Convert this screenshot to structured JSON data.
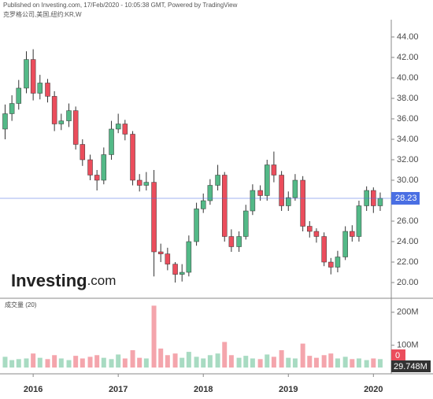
{
  "chart_data": {
    "type": "candlestick",
    "header": "Published on Investing.com, 17/Feb/2020 - 10:05:38 GMT, Powered by TradingView",
    "subtitle": "克罗格公司,美国,纽约:KR,W",
    "logo_main": "Investing",
    "logo_suffix": ".com",
    "up_color": "#53b987",
    "down_color": "#eb4d5c",
    "price_line_color": "#4a6fe3",
    "x": [
      2015.67,
      2015.75,
      2015.83,
      2015.92,
      2016.0,
      2016.08,
      2016.17,
      2016.25,
      2016.33,
      2016.42,
      2016.5,
      2016.58,
      2016.67,
      2016.75,
      2016.83,
      2016.92,
      2017.0,
      2017.08,
      2017.17,
      2017.25,
      2017.33,
      2017.42,
      2017.5,
      2017.58,
      2017.67,
      2017.75,
      2017.83,
      2017.92,
      2018.0,
      2018.08,
      2018.17,
      2018.25,
      2018.33,
      2018.42,
      2018.5,
      2018.58,
      2018.67,
      2018.75,
      2018.83,
      2018.92,
      2019.0,
      2019.08,
      2019.17,
      2019.25,
      2019.33,
      2019.42,
      2019.5,
      2019.58,
      2019.67,
      2019.75,
      2019.83,
      2019.92,
      2020.0,
      2020.08
    ],
    "open": [
      35.0,
      36.5,
      37.5,
      39.0,
      41.8,
      38.5,
      39.5,
      38.2,
      35.5,
      35.8,
      36.8,
      33.5,
      32.0,
      30.5,
      30.0,
      32.5,
      35.0,
      35.5,
      34.5,
      30.0,
      29.5,
      29.8,
      23.0,
      22.8,
      21.8,
      20.8,
      21.0,
      24.0,
      27.2,
      28.0,
      29.5,
      30.5,
      24.5,
      23.5,
      24.5,
      27.0,
      29.0,
      28.5,
      31.5,
      30.5,
      27.5,
      28.3,
      30.0,
      25.5,
      25.0,
      24.5,
      22.0,
      21.5,
      22.5,
      25.0,
      24.5,
      27.5,
      29.0,
      27.5
    ],
    "high": [
      37.4,
      38.3,
      39.8,
      42.6,
      42.8,
      40.3,
      39.9,
      38.7,
      36.5,
      37.5,
      37.2,
      34.0,
      32.5,
      31.0,
      33.2,
      35.8,
      36.5,
      35.9,
      34.8,
      30.6,
      30.8,
      31.0,
      23.8,
      23.4,
      22.0,
      21.8,
      24.6,
      27.8,
      28.7,
      30.1,
      31.5,
      30.8,
      25.2,
      25.0,
      27.6,
      29.6,
      29.5,
      32.0,
      32.8,
      30.9,
      28.9,
      30.6,
      30.4,
      26.0,
      25.3,
      24.9,
      22.4,
      23.1,
      25.5,
      25.6,
      28.0,
      29.4,
      29.3,
      28.8
    ],
    "low": [
      34.0,
      35.8,
      36.9,
      38.5,
      37.8,
      37.9,
      37.6,
      34.8,
      34.9,
      35.2,
      33.0,
      31.4,
      30.0,
      29.0,
      29.6,
      32.0,
      34.6,
      33.9,
      29.5,
      28.9,
      29.0,
      20.6,
      22.0,
      21.2,
      20.0,
      20.1,
      20.6,
      23.6,
      26.8,
      27.6,
      29.0,
      24.0,
      23.0,
      23.0,
      24.2,
      26.6,
      28.0,
      28.0,
      29.8,
      27.0,
      27.0,
      28.0,
      25.0,
      24.4,
      23.9,
      21.6,
      20.8,
      21.0,
      22.2,
      24.0,
      24.0,
      27.0,
      26.8,
      27.0
    ],
    "close": [
      36.5,
      37.5,
      39.0,
      41.8,
      38.5,
      39.5,
      38.2,
      35.5,
      35.8,
      36.8,
      33.5,
      32.0,
      30.5,
      30.0,
      32.5,
      35.0,
      35.5,
      34.5,
      30.0,
      29.5,
      29.8,
      23.0,
      22.8,
      21.8,
      20.8,
      21.0,
      24.0,
      27.2,
      28.0,
      29.5,
      30.5,
      24.5,
      23.5,
      24.5,
      27.0,
      29.0,
      28.5,
      31.5,
      30.5,
      27.5,
      28.3,
      30.0,
      25.5,
      25.0,
      24.5,
      22.0,
      21.5,
      22.5,
      25.0,
      24.5,
      27.5,
      29.0,
      27.5,
      28.23
    ],
    "xlim": [
      2015.61,
      2020.21
    ],
    "xticks": [
      2016,
      2017,
      2018,
      2019,
      2020
    ],
    "ylim": [
      18.54,
      45.69
    ],
    "yticks": [
      {
        "value": 20,
        "label": "20.00"
      },
      {
        "value": 22,
        "label": "22.00"
      },
      {
        "value": 24,
        "label": "24.00"
      },
      {
        "value": 26,
        "label": "26.00"
      },
      {
        "value": 28,
        "label": "28.00"
      },
      {
        "value": 30,
        "label": "30.00"
      },
      {
        "value": 32,
        "label": "32.00"
      },
      {
        "value": 34,
        "label": "34.00"
      },
      {
        "value": 36,
        "label": "36.00"
      },
      {
        "value": 38,
        "label": "38.00"
      },
      {
        "value": 40,
        "label": "40.00"
      },
      {
        "value": 42,
        "label": "42.00"
      },
      {
        "value": 44,
        "label": "44.00"
      }
    ],
    "volume": {
      "label": "成交量 (20)",
      "values": [
        65000000,
        55000000,
        58000000,
        60000000,
        75000000,
        62000000,
        58000000,
        70000000,
        60000000,
        55000000,
        68000000,
        60000000,
        65000000,
        70000000,
        62000000,
        58000000,
        72000000,
        60000000,
        85000000,
        62000000,
        60000000,
        220000000,
        90000000,
        70000000,
        75000000,
        62000000,
        80000000,
        65000000,
        60000000,
        70000000,
        75000000,
        110000000,
        70000000,
        62000000,
        68000000,
        60000000,
        58000000,
        72000000,
        65000000,
        85000000,
        62000000,
        60000000,
        105000000,
        68000000,
        62000000,
        70000000,
        75000000,
        60000000,
        65000000,
        58000000,
        60000000,
        55000000,
        60000000,
        58000000
      ],
      "ylim": [
        32500000,
        240000000
      ],
      "yticks": [
        {
          "value": 100000000,
          "label": "100M"
        },
        {
          "value": 200000000,
          "label": "200M"
        }
      ],
      "ma_label": "29.748M",
      "last_label": "0"
    }
  }
}
